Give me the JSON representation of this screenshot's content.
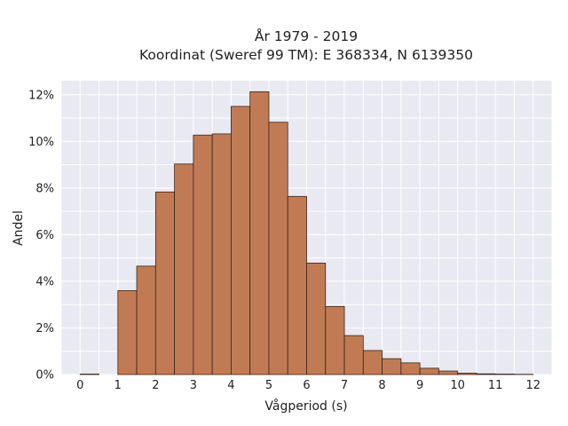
{
  "chart_data": {
    "type": "bar",
    "title_lines": [
      "År 1979 - 2019",
      "Koordinat (Sweref 99 TM): E 368334, N 6139350"
    ],
    "xlabel": "Vågperiod (s)",
    "ylabel": "Andel",
    "x_ticks": [
      "0",
      "1",
      "2",
      "3",
      "4",
      "5",
      "6",
      "7",
      "8",
      "9",
      "10",
      "11",
      "12"
    ],
    "y_ticks": [
      "0%",
      "2%",
      "4%",
      "6%",
      "8%",
      "10%",
      "12%"
    ],
    "xlim": [
      -0.5,
      12.5
    ],
    "ylim": [
      0,
      12.6
    ],
    "bin_width": 0.5,
    "bin_starts": [
      0,
      0.5,
      1,
      1.5,
      2,
      2.5,
      3,
      3.5,
      4,
      4.5,
      5,
      5.5,
      6,
      6.5,
      7,
      7.5,
      8,
      8.5,
      9,
      9.5,
      10,
      10.5,
      11,
      11.5
    ],
    "values": [
      0.02,
      0,
      3.6,
      4.65,
      7.83,
      9.03,
      10.27,
      10.32,
      11.5,
      12.13,
      10.82,
      7.64,
      4.78,
      2.92,
      1.67,
      1.03,
      0.68,
      0.5,
      0.27,
      0.15,
      0.06,
      0.03,
      0.02,
      0.01
    ],
    "background_color": "#e9e9f2",
    "bar_color": "#c07b55",
    "grid": true,
    "legend": "none"
  }
}
